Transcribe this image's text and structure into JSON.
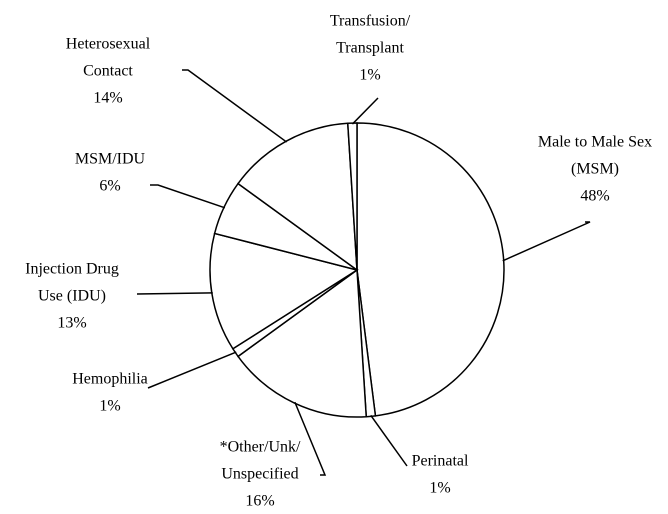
{
  "chart_data": {
    "type": "pie",
    "categories": [
      [
        "Male to Male Sex",
        "(MSM)"
      ],
      [
        "Perinatal"
      ],
      [
        "*Other/Unk/",
        "Unspecified"
      ],
      [
        "Hemophilia"
      ],
      [
        "Injection Drug",
        "Use (IDU)"
      ],
      [
        "MSM/IDU"
      ],
      [
        "Heterosexual",
        "Contact"
      ],
      [
        "Transfusion/",
        "Transplant"
      ]
    ],
    "values": [
      48,
      1,
      16,
      1,
      13,
      6,
      14,
      1
    ],
    "value_labels": [
      "48%",
      "1%",
      "16%",
      "1%",
      "13%",
      "6%",
      "14%",
      "1%"
    ],
    "color": "#ffffff"
  }
}
